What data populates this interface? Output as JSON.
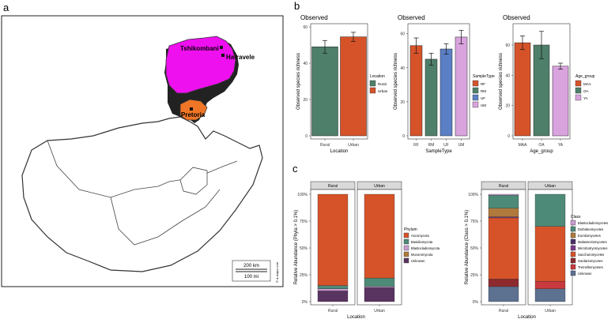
{
  "panel_labels": {
    "a": "a",
    "b": "b",
    "c": "c"
  },
  "colors": {
    "limpopo": "#ee10ee",
    "gauteng": "#ef7626",
    "rural": "#4e7f6a",
    "urban": "#d6532a",
    "rf": "#d6532a",
    "rm": "#4e7f6a",
    "uf": "#5b7fc4",
    "um": "#d9a3de",
    "maa": "#d6532a",
    "oa": "#4e7f6a",
    "ya": "#d9a3de",
    "strip": "#d9d9d9"
  },
  "map": {
    "place_labels": [
      "Tshikombani",
      "Ha-ravele",
      "Pretoria"
    ],
    "scale_km": "200 km",
    "scale_mi": "100 mi",
    "credit": "© d-maps.com"
  },
  "chart_data": [
    {
      "type": "bar",
      "title": "Observed",
      "ylabel": "Observed species richness",
      "xlabel": "Location",
      "categories": [
        "Rural",
        "Urban"
      ],
      "values": [
        49,
        54.5
      ],
      "errors": [
        3.5,
        2.5
      ],
      "ylim": [
        0,
        60
      ],
      "yticks": [
        "0",
        "20",
        "40",
        "60"
      ],
      "color_keys": [
        "rural",
        "urban"
      ],
      "legend": {
        "title": "Location",
        "entries": [
          "Rural",
          "Urban"
        ]
      }
    },
    {
      "type": "bar",
      "title": "Observed",
      "ylabel": "Observed species richness",
      "xlabel": "SampleType",
      "categories": [
        "RF",
        "RM",
        "UF",
        "UM"
      ],
      "values": [
        53,
        45,
        51,
        58
      ],
      "errors": [
        4.5,
        3.5,
        3,
        4
      ],
      "ylim": [
        0,
        64
      ],
      "yticks": [
        "0",
        "20",
        "40",
        "60"
      ],
      "color_keys": [
        "rf",
        "rm",
        "uf",
        "um"
      ],
      "legend": {
        "title": "SampleType",
        "entries": [
          "RF",
          "RM",
          "UF",
          "UM"
        ]
      }
    },
    {
      "type": "bar",
      "title": "Observed",
      "ylabel": "Observed species richness",
      "xlabel": "Age_group",
      "categories": [
        "MAA",
        "OA",
        "YA"
      ],
      "values": [
        61.5,
        60,
        46
      ],
      "errors": [
        4.5,
        9,
        2
      ],
      "ylim": [
        0,
        72
      ],
      "yticks": [
        "0",
        "20",
        "40",
        "60"
      ],
      "color_keys": [
        "maa",
        "oa",
        "ya"
      ],
      "legend": {
        "title": "Age_group",
        "entries": [
          "MAA",
          "OA",
          "YA"
        ]
      }
    },
    {
      "type": "stacked_bar",
      "ylabel": "Relative Abundance (Phyla > 0.1%)",
      "xlabel": "Location",
      "facets": [
        "Rural",
        "Urban"
      ],
      "yticks": [
        "0%",
        "25%",
        "50%",
        "75%",
        "100%"
      ],
      "series": [
        {
          "name": "Unknown",
          "color": "#5a3461",
          "values": [
            10,
            13
          ]
        },
        {
          "name": "Mucoromycota",
          "color": "#b07a3c",
          "values": [
            0,
            0
          ]
        },
        {
          "name": "Blastocladiomycota",
          "color": "#c99ccf",
          "values": [
            2,
            1
          ]
        },
        {
          "name": "Basidiomycota",
          "color": "#4e8a78",
          "values": [
            3,
            8
          ]
        },
        {
          "name": "Ascomycota",
          "color": "#d6532a",
          "values": [
            85,
            78
          ]
        }
      ],
      "legend": {
        "title": "Phylum",
        "entries": [
          "Ascomycota",
          "Basidiomycota",
          "Blastocladiomycota",
          "Mucoromycota",
          "Unknown"
        ]
      }
    },
    {
      "type": "stacked_bar",
      "ylabel": "Relative Abundance (Class > 0.1%)",
      "xlabel": "Location",
      "facets": [
        "Rural",
        "Urban"
      ],
      "yticks": [
        "0%",
        "25%",
        "50%",
        "75%",
        "100%"
      ],
      "series": [
        {
          "name": "Unknown",
          "color": "#5d7191",
          "values": [
            14,
            12
          ]
        },
        {
          "name": "Tremellomycetes",
          "color": "#c83a3e",
          "values": [
            0,
            7
          ]
        },
        {
          "name": "Sordariomycetes",
          "color": "#8c2a2e",
          "values": [
            7,
            0
          ]
        },
        {
          "name": "Saccharomycetes",
          "color": "#d6532a",
          "values": [
            57,
            51
          ]
        },
        {
          "name": "Microbotryomycetes",
          "color": "#7a3a8a",
          "values": [
            1,
            0
          ]
        },
        {
          "name": "Malasseziomycetes",
          "color": "#4a3066",
          "values": [
            0,
            0
          ]
        },
        {
          "name": "Eurotiomycetes",
          "color": "#b07a3c",
          "values": [
            8,
            0
          ]
        },
        {
          "name": "Dothideomycetes",
          "color": "#4e8a78",
          "values": [
            12,
            30
          ]
        },
        {
          "name": "Blastocladiomycetes",
          "color": "#c99ccf",
          "values": [
            1,
            0
          ]
        }
      ],
      "legend": {
        "title": "Class",
        "entries": [
          "Blastocladiomycetes",
          "Dothideomycetes",
          "Eurotiomycetes",
          "Malasseziomycetes",
          "Microbotryomycetes",
          "Saccharomycetes",
          "Sordariomycetes",
          "Tremellomycetes",
          "Unknown"
        ]
      }
    }
  ]
}
